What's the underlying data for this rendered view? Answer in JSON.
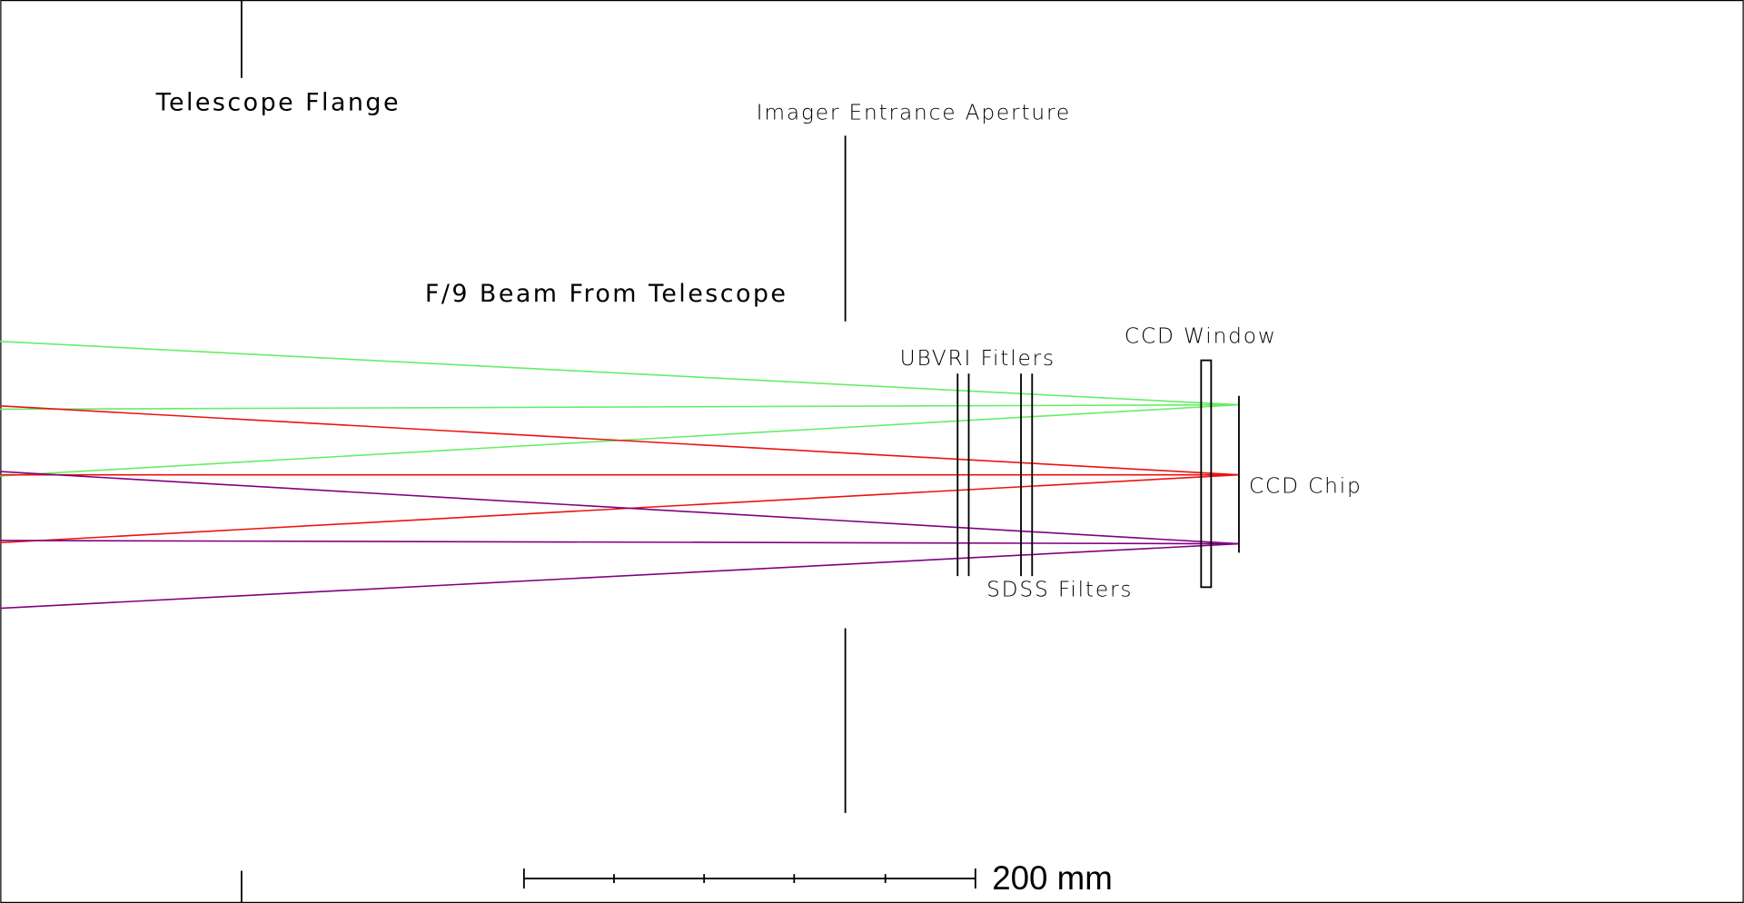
{
  "labels": {
    "telescope_flange": "Telescope Flange",
    "imager_entrance_aperture": "Imager Entrance Aperture",
    "beam": "F/9 Beam From Telescope",
    "ubvri_filters": "UBVRI Fitlers",
    "ccd_window": "CCD Window",
    "ccd_chip": "CCD Chip",
    "sdss_filters": "SDSS Filters",
    "scale_bar": "200 mm"
  }
}
